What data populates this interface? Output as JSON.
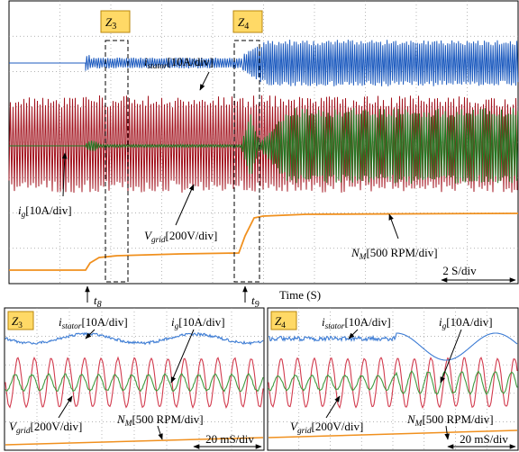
{
  "top": {
    "zoom_labels": [
      {
        "symbol": "Z",
        "sub": "3"
      },
      {
        "symbol": "Z",
        "sub": "4"
      }
    ],
    "istator": {
      "symbol": "i",
      "sub": "stator",
      "scale": "[10A/div]"
    },
    "ig": {
      "symbol": "i",
      "sub": "g",
      "scale": "[10A/div]"
    },
    "vgrid": {
      "symbol": "V",
      "sub": "grid",
      "scale": "[200V/div]"
    },
    "nm": {
      "symbol": "N",
      "sub": "M",
      "scale": "[500 RPM/div]"
    },
    "time_scale": "2 S/div",
    "t8": {
      "symbol": "t",
      "sub": "8"
    },
    "t9": {
      "symbol": "t",
      "sub": "9"
    },
    "x_label": "Time (S)"
  },
  "zoom_panels": [
    {
      "label": {
        "symbol": "Z",
        "sub": "3"
      },
      "istator": {
        "symbol": "i",
        "sub": "stator",
        "scale": "[10A/div]"
      },
      "ig": {
        "symbol": "i",
        "sub": "g",
        "scale": "[10A/div]"
      },
      "vgrid": {
        "symbol": "V",
        "sub": "grid",
        "scale": "[200V/div]"
      },
      "nm": {
        "symbol": "N",
        "sub": "M",
        "scale": "[500 RPM/div]"
      },
      "time_scale": "20 mS/div"
    },
    {
      "label": {
        "symbol": "Z",
        "sub": "4"
      },
      "istator": {
        "symbol": "i",
        "sub": "stator",
        "scale": "[10A/div]"
      },
      "ig": {
        "symbol": "i",
        "sub": "g",
        "scale": "[10A/div]"
      },
      "vgrid": {
        "symbol": "V",
        "sub": "grid",
        "scale": "[200V/div]"
      },
      "nm": {
        "symbol": "N",
        "sub": "M",
        "scale": "[500 RPM/div]"
      },
      "time_scale": "20 mS/div"
    }
  ]
}
